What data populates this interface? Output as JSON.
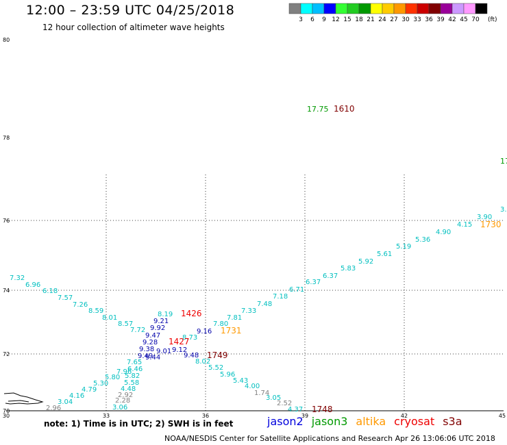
{
  "title": "12:00 – 23:59 UTC 04/25/2018",
  "subtitle": "12 hour collection of altimeter wave heights",
  "note": "note:  1) Time is in UTC;  2) SWH is in feet",
  "credit": "NOAA/NESDIS Center for Satellite Applications and Research     Apr 26 13:06:06 UTC 2018",
  "colorbar": {
    "unit": "(ft)",
    "colors": [
      "#808080",
      "#00ffff",
      "#00bfff",
      "#0000ff",
      "#33ff33",
      "#22cc22",
      "#009900",
      "#ffff00",
      "#ffcc00",
      "#ff9900",
      "#ff3300",
      "#cc0000",
      "#800000",
      "#990099",
      "#cc99ff",
      "#ff99ff",
      "#000000"
    ],
    "labels": [
      "3",
      "6",
      "9",
      "12",
      "15",
      "18",
      "21",
      "24",
      "27",
      "30",
      "33",
      "36",
      "39",
      "42",
      "45",
      "70"
    ]
  },
  "axes": {
    "x_ticks": [
      "30",
      "33",
      "36",
      "39",
      "42",
      "45"
    ],
    "y_ticks": [
      "80",
      "78",
      "76",
      "74",
      "72",
      "70"
    ]
  },
  "satellites": [
    {
      "name": "jason2",
      "color": "#0000dd"
    },
    {
      "name": "jason3",
      "color": "#009900"
    },
    {
      "name": "altika",
      "color": "#ff9900"
    },
    {
      "name": "cryosat",
      "color": "#ee0000"
    },
    {
      "name": "s3a",
      "color": "#800000"
    }
  ],
  "coastline_icon": "coastline-outline",
  "points": [
    {
      "t": "17.75",
      "c": "#009900"
    },
    {
      "t": "1610",
      "c": "#800000"
    },
    {
      "t": "17",
      "c": "#009900"
    },
    {
      "t": "7.32",
      "c": "#00bfbf"
    },
    {
      "t": "6.96",
      "c": "#00bfbf"
    },
    {
      "t": "6.18",
      "c": "#00bfbf"
    },
    {
      "t": "7.57",
      "c": "#00bfbf"
    },
    {
      "t": "7.26",
      "c": "#00bfbf"
    },
    {
      "t": "8.59",
      "c": "#00bfbf"
    },
    {
      "t": "8.01",
      "c": "#00bfbf"
    },
    {
      "t": "8.57",
      "c": "#00bfbf"
    },
    {
      "t": "7.72",
      "c": "#00bfbf"
    },
    {
      "t": "8.19",
      "c": "#00bfbf"
    },
    {
      "t": "8.73",
      "c": "#00bfbf"
    },
    {
      "t": "7.80",
      "c": "#00bfbf"
    },
    {
      "t": "7.81",
      "c": "#00bfbf"
    },
    {
      "t": "7.33",
      "c": "#00bfbf"
    },
    {
      "t": "7.48",
      "c": "#00bfbf"
    },
    {
      "t": "7.18",
      "c": "#00bfbf"
    },
    {
      "t": "6.71",
      "c": "#00bfbf"
    },
    {
      "t": "6.37",
      "c": "#00bfbf"
    },
    {
      "t": "6.37",
      "c": "#00bfbf"
    },
    {
      "t": "5.83",
      "c": "#00bfbf"
    },
    {
      "t": "5.92",
      "c": "#00bfbf"
    },
    {
      "t": "5.61",
      "c": "#00bfbf"
    },
    {
      "t": "5.19",
      "c": "#00bfbf"
    },
    {
      "t": "5.36",
      "c": "#00bfbf"
    },
    {
      "t": "4.90",
      "c": "#00bfbf"
    },
    {
      "t": "4.15",
      "c": "#00bfbf"
    },
    {
      "t": "3.90",
      "c": "#00bfbf"
    },
    {
      "t": "3.",
      "c": "#00bfbf"
    },
    {
      "t": "1730",
      "c": "#ff9900"
    },
    {
      "t": "1731",
      "c": "#ff9900"
    },
    {
      "t": "1426",
      "c": "#ee0000"
    },
    {
      "t": "1427",
      "c": "#ee0000"
    },
    {
      "t": "1749",
      "c": "#800000"
    },
    {
      "t": "1748",
      "c": "#800000"
    },
    {
      "t": "9.21",
      "c": "#0000aa"
    },
    {
      "t": "9.92",
      "c": "#0000aa"
    },
    {
      "t": "9.47",
      "c": "#0000aa"
    },
    {
      "t": "9.28",
      "c": "#0000aa"
    },
    {
      "t": "9.38",
      "c": "#0000aa"
    },
    {
      "t": "9.01",
      "c": "#0000aa"
    },
    {
      "t": "9.12",
      "c": "#0000aa"
    },
    {
      "t": "9.16",
      "c": "#0000aa"
    },
    {
      "t": "9.48",
      "c": "#0000aa"
    },
    {
      "t": "9.49",
      "c": "#0000aa"
    },
    {
      "t": "9.44",
      "c": "#0000aa"
    },
    {
      "t": "8.02",
      "c": "#00bfbf"
    },
    {
      "t": "5.52",
      "c": "#00bfbf"
    },
    {
      "t": "5.96",
      "c": "#00bfbf"
    },
    {
      "t": "5.43",
      "c": "#00bfbf"
    },
    {
      "t": "4.00",
      "c": "#00bfbf"
    },
    {
      "t": "1.74",
      "c": "#808080"
    },
    {
      "t": "3.05",
      "c": "#00bfbf"
    },
    {
      "t": "2.52",
      "c": "#808080"
    },
    {
      "t": "4.37",
      "c": "#00bfbf"
    },
    {
      "t": "7.96",
      "c": "#00bfbf"
    },
    {
      "t": "7.65",
      "c": "#00bfbf"
    },
    {
      "t": "6.46",
      "c": "#00bfbf"
    },
    {
      "t": "5.82",
      "c": "#00bfbf"
    },
    {
      "t": "5.80",
      "c": "#00bfbf"
    },
    {
      "t": "5.58",
      "c": "#00bfbf"
    },
    {
      "t": "5.30",
      "c": "#00bfbf"
    },
    {
      "t": "4.48",
      "c": "#00bfbf"
    },
    {
      "t": "4.79",
      "c": "#00bfbf"
    },
    {
      "t": "2.92",
      "c": "#808080"
    },
    {
      "t": "4.16",
      "c": "#00bfbf"
    },
    {
      "t": "2.28",
      "c": "#808080"
    },
    {
      "t": "3.04",
      "c": "#00bfbf"
    },
    {
      "t": "3.06",
      "c": "#00bfbf"
    },
    {
      "t": "2.96",
      "c": "#808080"
    }
  ]
}
